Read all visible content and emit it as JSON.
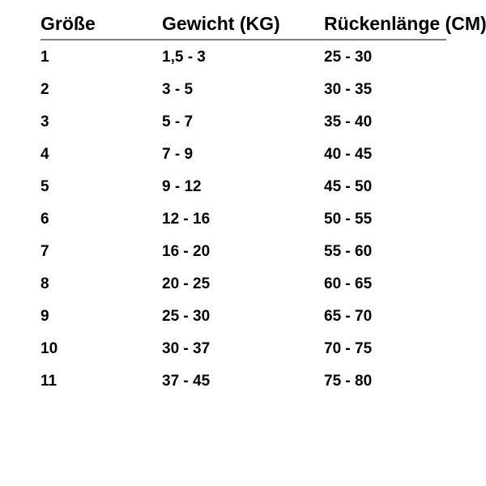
{
  "chart_data": {
    "type": "table",
    "columns": [
      "Größe",
      "Gewicht (KG)",
      "Rückenlänge (CM)"
    ],
    "rows": [
      [
        "1",
        "1,5 - 3",
        "25 - 30"
      ],
      [
        "2",
        "3 - 5",
        "30 - 35"
      ],
      [
        "3",
        "5 - 7",
        "35 - 40"
      ],
      [
        "4",
        "7 - 9",
        "40 - 45"
      ],
      [
        "5",
        "9 - 12",
        "45 - 50"
      ],
      [
        "6",
        "12 - 16",
        "50 - 55"
      ],
      [
        "7",
        "16 - 20",
        "55 - 60"
      ],
      [
        "8",
        "20 - 25",
        "60 - 65"
      ],
      [
        "9",
        "25 - 30",
        "65 - 70"
      ],
      [
        "10",
        "30 - 37",
        "70 - 75"
      ],
      [
        "11",
        "37 - 45",
        "75 - 80"
      ]
    ],
    "layout": {
      "header_rule": "on",
      "grid": "off"
    }
  },
  "colors": {
    "text": "#000000",
    "header_rule": "#7f7f7f",
    "background": "#ffffff"
  }
}
